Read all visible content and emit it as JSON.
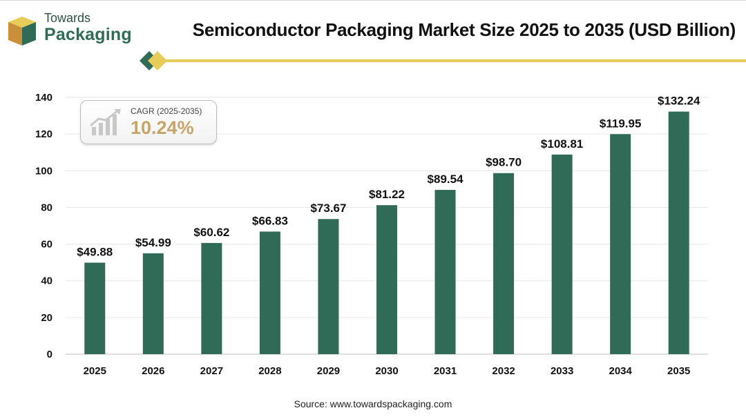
{
  "brand": {
    "small": "Towards",
    "big": "Packaging"
  },
  "colors": {
    "bar": "#2f6b57",
    "accent": "#e8cc5a",
    "cagr_value": "#c9a46a"
  },
  "cagr": {
    "label": "CAGR (2025-2035)",
    "value": "10.24%"
  },
  "source": "Source: www.towardspackaging.com",
  "chart_data": {
    "type": "bar",
    "title": "Semiconductor Packaging Market Size 2025 to 2035 (USD Billion)",
    "categories": [
      "2025",
      "2026",
      "2027",
      "2028",
      "2029",
      "2030",
      "2031",
      "2032",
      "2033",
      "2034",
      "2035"
    ],
    "values": [
      49.88,
      54.99,
      60.62,
      66.83,
      73.67,
      81.22,
      89.54,
      98.7,
      108.81,
      119.95,
      132.24
    ],
    "data_labels": [
      "$49.88",
      "$54.99",
      "$60.62",
      "$66.83",
      "$73.67",
      "$81.22",
      "$89.54",
      "$98.70",
      "$108.81",
      "$119.95",
      "$132.24"
    ],
    "yticks": [
      0,
      20,
      40,
      60,
      80,
      100,
      120,
      140
    ],
    "ylim": [
      0,
      140
    ],
    "grid": true,
    "legend": "none"
  }
}
